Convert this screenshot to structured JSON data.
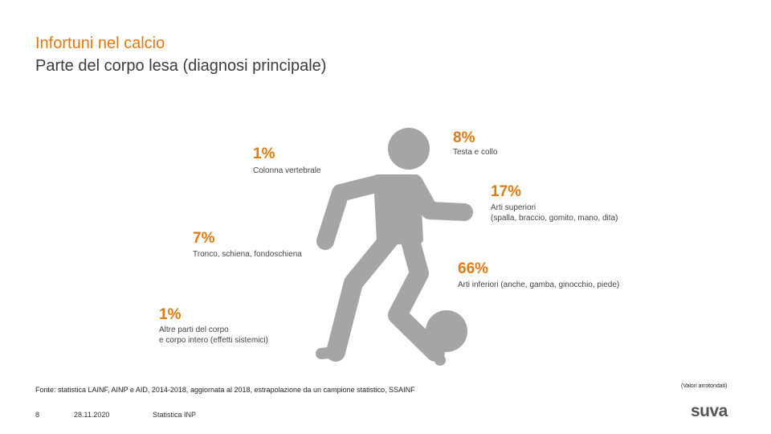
{
  "header": {
    "title": "Infortuni nel calcio",
    "subtitle": "Parte del corpo lesa (diagnosi principale)"
  },
  "stats": {
    "head": {
      "pct": "8%",
      "label": "Testa e collo"
    },
    "spine": {
      "pct": "1%",
      "label": "Colonna vertebrale"
    },
    "upper": {
      "pct": "17%",
      "label_1": "Arti superiori",
      "label_2": "(spalla, braccio, gomito, mano, dita)"
    },
    "trunk": {
      "pct": "7%",
      "label": "Tronco, schiena, fondoschiena"
    },
    "lower": {
      "pct": "66%",
      "label": "Arti inferiori (anche, gamba, ginocchio, piede)"
    },
    "other": {
      "pct": "1%",
      "label_1": "Altre parti del corpo",
      "label_2": "e corpo intero (effetti sistemici)"
    }
  },
  "footer": {
    "source": "Fonte: statistica LAINF, AINP e AID, 2014-2018, aggiornata al 2018, estrapolazione da un campione statistico, SSAINF",
    "note": "(Valori arrotondati)",
    "page_number": "8",
    "date": "28.11.2020",
    "department": "Statistica INP",
    "logo": "suva"
  },
  "colors": {
    "accent": "#e07a10",
    "figure": "#a5a5a5",
    "text": "#3c3c3c"
  },
  "icons": {
    "figure": "football-player-icon",
    "ball": "football-icon"
  }
}
